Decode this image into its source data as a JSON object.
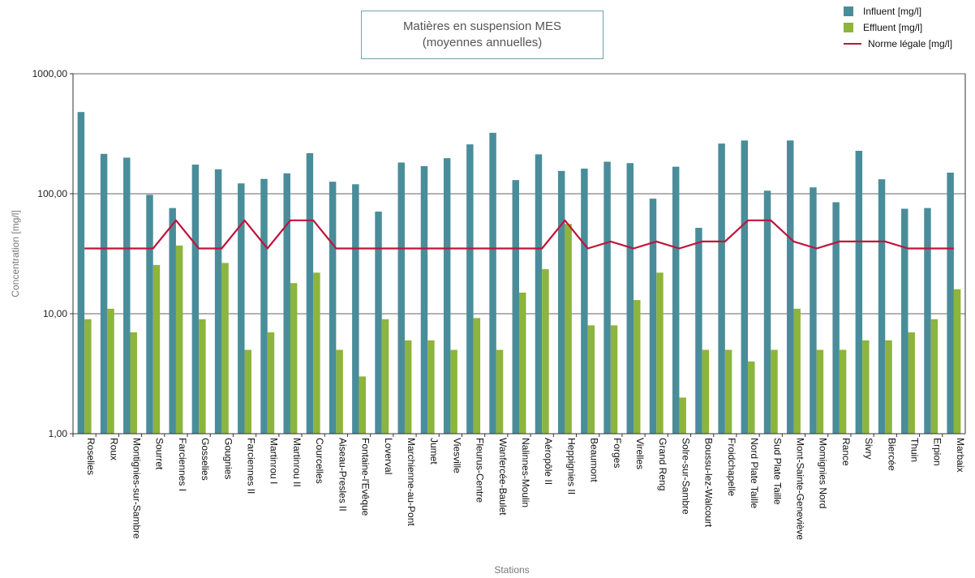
{
  "chart_data": {
    "type": "bar",
    "title": "Matières en suspension MES",
    "subtitle": "(moyennes annuelles)",
    "xlabel": "Stations",
    "ylabel": "Concentration [mg/l]",
    "yscale": "log",
    "ylim": [
      1,
      1000
    ],
    "yticks": [
      "1,00",
      "10,00",
      "100,00",
      "1000,00"
    ],
    "grid": true,
    "legend_position": "top-right",
    "categories": [
      "Roselies",
      "Roux",
      "Montignies-sur-Sambre",
      "Sourret",
      "Farciennes I",
      "Gosselies",
      "Gougnies",
      "Farciennes II",
      "Martinrou I",
      "Martinrou II",
      "Courcelles",
      "Aiseau-Presles II",
      "Fontaine-l'Evêque",
      "Loverval",
      "Marchienne-au-Pont",
      "Jumet",
      "Viesville",
      "Fleurus-Centre",
      "Wanfercée-Baulet",
      "Nalinnes-Moulin",
      "Aéropôle II",
      "Heppignies II",
      "Beaumont",
      "Forges",
      "Virelles",
      "Grand Reng",
      "Solre-sur-Sambre",
      "Boussu-lez-Walcourt",
      "Froidchapelle",
      "Nord Plate Taille",
      "Sud Plate Taille",
      "Mont-Sainte-Geneviève",
      "Momignies Nord",
      "Rance",
      "Sivry",
      "Biercée",
      "Thuin",
      "Erpion",
      "Marbaix"
    ],
    "series": [
      {
        "name": "Influent [mg/l]",
        "kind": "bar",
        "color": "#4a8d9a",
        "values": [
          480,
          215,
          200,
          98,
          76,
          175,
          160,
          122,
          133,
          148,
          218,
          126,
          120,
          71,
          182,
          170,
          198,
          258,
          322,
          130,
          213,
          155,
          162,
          185,
          180,
          91,
          168,
          52,
          262,
          278,
          106,
          278,
          113,
          85,
          228,
          132,
          75,
          76,
          150
        ]
      },
      {
        "name": "Effluent [mg/l]",
        "kind": "bar",
        "color": "#8db43c",
        "values": [
          9,
          11,
          7,
          25.5,
          37,
          9,
          26.5,
          5,
          7,
          18,
          22,
          5,
          3,
          9,
          6,
          6,
          5,
          9.2,
          5,
          15,
          23.5,
          56,
          8,
          8,
          13,
          22,
          2,
          5,
          5,
          4,
          5,
          11,
          5,
          5,
          6,
          6,
          7,
          9,
          16
        ]
      },
      {
        "name": "Norme légale [mg/l]",
        "kind": "line",
        "color": "#c0143c",
        "values": [
          35,
          35,
          35,
          35,
          60,
          35,
          35,
          60,
          35,
          60,
          60,
          35,
          35,
          35,
          35,
          35,
          35,
          35,
          35,
          35,
          35,
          60,
          35,
          40,
          35,
          40,
          35,
          40,
          40,
          60,
          60,
          40,
          35,
          40,
          40,
          40,
          35,
          35,
          35
        ]
      }
    ]
  }
}
